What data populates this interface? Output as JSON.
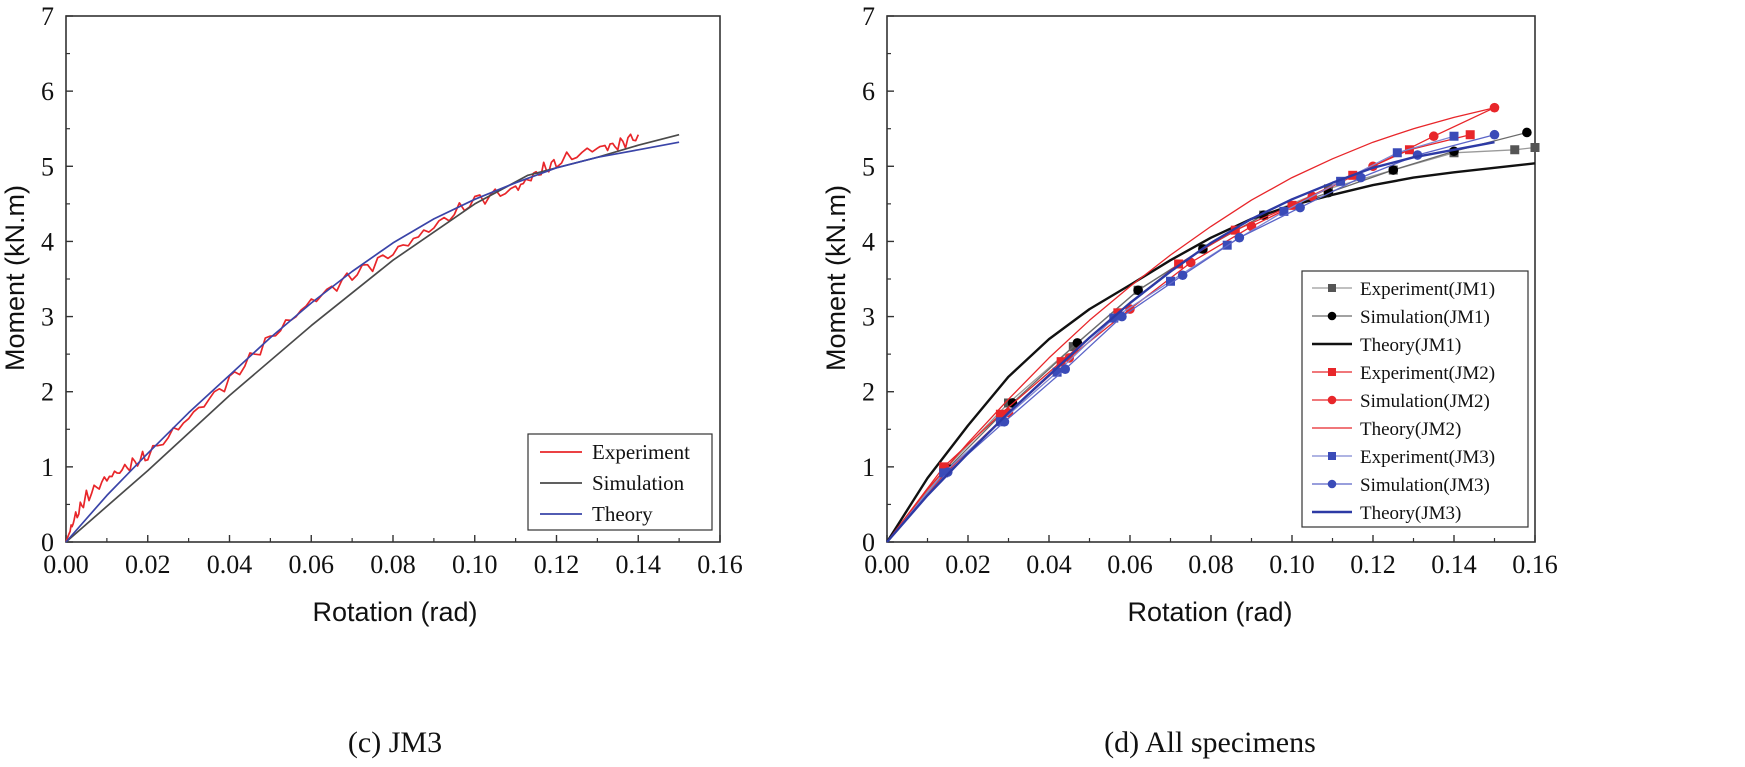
{
  "chart_data": [
    {
      "type": "line",
      "caption": "(c) JM3",
      "xlabel": "Rotation (rad)",
      "ylabel": "Moment (kN.m)",
      "xlim": [
        0,
        0.16
      ],
      "ylim": [
        0,
        7
      ],
      "xticks": [
        "0.00",
        "0.02",
        "0.04",
        "0.06",
        "0.08",
        "0.10",
        "0.12",
        "0.14",
        "0.16"
      ],
      "yticks": [
        "0",
        "1",
        "2",
        "3",
        "4",
        "5",
        "6",
        "7"
      ],
      "legend_position": "bottom-right",
      "series": [
        {
          "name": "Experiment",
          "color": "#e8262a",
          "noise": true,
          "x": [
            0,
            0.002,
            0.005,
            0.01,
            0.015,
            0.02,
            0.03,
            0.04,
            0.05,
            0.06,
            0.07,
            0.08,
            0.09,
            0.1,
            0.11,
            0.115,
            0.12,
            0.13,
            0.135,
            0.14
          ],
          "y": [
            0,
            0.3,
            0.6,
            0.85,
            1.0,
            1.15,
            1.65,
            2.15,
            2.72,
            3.2,
            3.55,
            3.85,
            4.2,
            4.55,
            4.7,
            4.9,
            5.05,
            5.25,
            5.28,
            5.42
          ]
        },
        {
          "name": "Simulation",
          "color": "#4a4a4a",
          "x": [
            0,
            0.02,
            0.04,
            0.06,
            0.08,
            0.1,
            0.113,
            0.12,
            0.13,
            0.14,
            0.15
          ],
          "y": [
            0,
            0.95,
            1.95,
            2.88,
            3.75,
            4.5,
            4.88,
            4.98,
            5.12,
            5.28,
            5.42
          ]
        },
        {
          "name": "Theory",
          "color": "#3a44a8",
          "x": [
            0,
            0.01,
            0.02,
            0.03,
            0.04,
            0.05,
            0.06,
            0.07,
            0.08,
            0.09,
            0.1,
            0.11,
            0.12,
            0.13,
            0.14,
            0.15
          ],
          "y": [
            0,
            0.62,
            1.18,
            1.72,
            2.22,
            2.72,
            3.18,
            3.6,
            3.98,
            4.3,
            4.56,
            4.78,
            4.98,
            5.12,
            5.22,
            5.32
          ]
        }
      ]
    },
    {
      "type": "line",
      "caption": "(d) All specimens",
      "xlabel": "Rotation (rad)",
      "ylabel": "Moment (kN.m)",
      "xlim": [
        0,
        0.16
      ],
      "ylim": [
        0,
        7
      ],
      "xticks": [
        "0.00",
        "0.02",
        "0.04",
        "0.06",
        "0.08",
        "0.10",
        "0.12",
        "0.14",
        "0.16"
      ],
      "yticks": [
        "0",
        "1",
        "2",
        "3",
        "4",
        "5",
        "6",
        "7"
      ],
      "legend_position": "bottom-right",
      "series": [
        {
          "name": "Experiment(JM1)",
          "color": "#9a9a9a",
          "marker": "square",
          "marker_color": "#555555",
          "line_width": 1.3,
          "x": [
            0,
            0.014,
            0.03,
            0.046,
            0.062,
            0.078,
            0.093,
            0.109,
            0.125,
            0.14,
            0.155,
            0.16
          ],
          "y": [
            0,
            0.95,
            1.85,
            2.6,
            3.35,
            3.9,
            4.35,
            4.7,
            4.95,
            5.18,
            5.22,
            5.25
          ]
        },
        {
          "name": "Simulation(JM1)",
          "color": "#6a6a6a",
          "marker": "circle",
          "marker_color": "#000000",
          "line_width": 1.3,
          "x": [
            0,
            0.015,
            0.031,
            0.047,
            0.062,
            0.078,
            0.093,
            0.109,
            0.125,
            0.14,
            0.158
          ],
          "y": [
            0,
            0.98,
            1.85,
            2.65,
            3.35,
            3.9,
            4.35,
            4.65,
            4.95,
            5.2,
            5.45
          ]
        },
        {
          "name": "Theory(JM1)",
          "color": "#111111",
          "line_width": 2.4,
          "x": [
            0,
            0.01,
            0.02,
            0.03,
            0.04,
            0.05,
            0.06,
            0.07,
            0.08,
            0.09,
            0.1,
            0.11,
            0.12,
            0.13,
            0.14,
            0.15,
            0.16
          ],
          "y": [
            0,
            0.85,
            1.55,
            2.2,
            2.7,
            3.1,
            3.42,
            3.75,
            4.05,
            4.3,
            4.48,
            4.62,
            4.75,
            4.85,
            4.92,
            4.98,
            5.04
          ]
        },
        {
          "name": "Experiment(JM2)",
          "color": "#e8262a",
          "marker": "square",
          "marker_color": "#e8262a",
          "line_width": 1.3,
          "x": [
            0,
            0.014,
            0.028,
            0.043,
            0.057,
            0.072,
            0.086,
            0.1,
            0.115,
            0.129,
            0.144
          ],
          "y": [
            0,
            1.0,
            1.7,
            2.4,
            3.05,
            3.7,
            4.15,
            4.48,
            4.88,
            5.22,
            5.42
          ]
        },
        {
          "name": "Simulation(JM2)",
          "color": "#e8262a",
          "marker": "circle",
          "marker_color": "#e8262a",
          "line_width": 1.3,
          "x": [
            0,
            0.015,
            0.03,
            0.045,
            0.06,
            0.075,
            0.09,
            0.105,
            0.12,
            0.135,
            0.15
          ],
          "y": [
            0,
            0.95,
            1.72,
            2.45,
            3.1,
            3.72,
            4.2,
            4.6,
            5.0,
            5.4,
            5.78
          ]
        },
        {
          "name": "Theory(JM2)",
          "color": "#e8262a",
          "line_width": 1.3,
          "x": [
            0,
            0.01,
            0.02,
            0.03,
            0.04,
            0.05,
            0.06,
            0.07,
            0.08,
            0.09,
            0.1,
            0.11,
            0.12,
            0.13,
            0.14,
            0.15
          ],
          "y": [
            0,
            0.7,
            1.32,
            1.9,
            2.45,
            2.95,
            3.4,
            3.82,
            4.2,
            4.55,
            4.85,
            5.1,
            5.32,
            5.5,
            5.65,
            5.78
          ]
        },
        {
          "name": "Experiment(JM3)",
          "color": "#7f86d2",
          "marker": "square",
          "marker_color": "#3a4bb8",
          "line_width": 1.3,
          "x": [
            0,
            0.014,
            0.028,
            0.042,
            0.056,
            0.07,
            0.084,
            0.098,
            0.112,
            0.126,
            0.14
          ],
          "y": [
            0,
            0.92,
            1.6,
            2.26,
            2.98,
            3.47,
            3.95,
            4.4,
            4.8,
            5.18,
            5.4
          ]
        },
        {
          "name": "Simulation(JM3)",
          "color": "#5a64c8",
          "marker": "circle",
          "marker_color": "#3a4bb8",
          "line_width": 1.3,
          "x": [
            0,
            0.015,
            0.029,
            0.044,
            0.058,
            0.073,
            0.087,
            0.102,
            0.117,
            0.131,
            0.15
          ],
          "y": [
            0,
            0.93,
            1.6,
            2.3,
            3.0,
            3.55,
            4.05,
            4.45,
            4.85,
            5.15,
            5.42
          ]
        },
        {
          "name": "Theory(JM3)",
          "color": "#2d3aa5",
          "line_width": 2.4,
          "x": [
            0,
            0.01,
            0.02,
            0.03,
            0.04,
            0.05,
            0.06,
            0.07,
            0.08,
            0.09,
            0.1,
            0.11,
            0.12,
            0.13,
            0.14,
            0.15
          ],
          "y": [
            0,
            0.62,
            1.18,
            1.72,
            2.22,
            2.72,
            3.18,
            3.6,
            3.98,
            4.3,
            4.56,
            4.78,
            4.98,
            5.12,
            5.22,
            5.32
          ]
        }
      ]
    }
  ]
}
